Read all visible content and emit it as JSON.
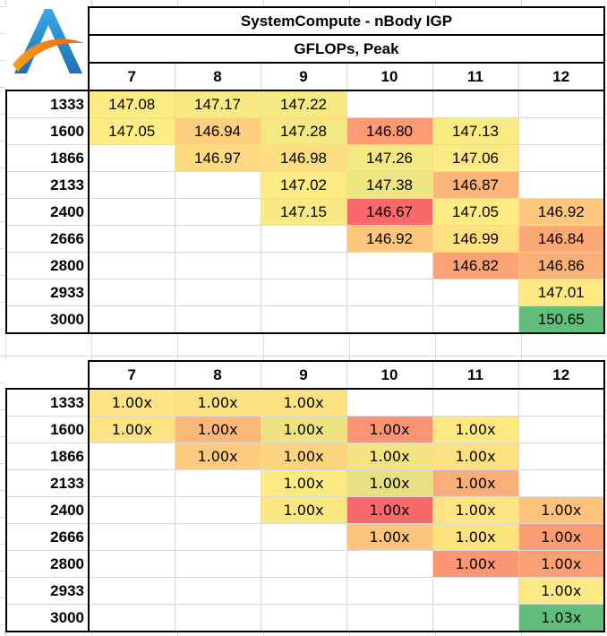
{
  "colors": {
    "min": "#f8696b",
    "mid": "#ffeb84",
    "max": "#63be7b"
  },
  "logo": {
    "icon": "letter-a-logo-icon"
  },
  "table1": {
    "title": "SystemCompute - nBody IGP",
    "subtitle": "GFLOPs, Peak",
    "columns": [
      "7",
      "8",
      "9",
      "10",
      "11",
      "12"
    ],
    "rows": [
      {
        "label": "1333",
        "cells": [
          "147.08",
          "147.17",
          "147.22",
          "",
          "",
          ""
        ]
      },
      {
        "label": "1600",
        "cells": [
          "147.05",
          "146.94",
          "147.28",
          "146.80",
          "147.13",
          ""
        ]
      },
      {
        "label": "1866",
        "cells": [
          "",
          "146.97",
          "146.98",
          "147.26",
          "147.06",
          ""
        ]
      },
      {
        "label": "2133",
        "cells": [
          "",
          "",
          "147.02",
          "147.38",
          "146.87",
          ""
        ]
      },
      {
        "label": "2400",
        "cells": [
          "",
          "",
          "147.15",
          "146.67",
          "147.05",
          "146.92"
        ]
      },
      {
        "label": "2666",
        "cells": [
          "",
          "",
          "",
          "146.92",
          "146.99",
          "146.84"
        ]
      },
      {
        "label": "2800",
        "cells": [
          "",
          "",
          "",
          "",
          "146.82",
          "146.86"
        ]
      },
      {
        "label": "2933",
        "cells": [
          "",
          "",
          "",
          "",
          "",
          "147.01"
        ]
      },
      {
        "label": "3000",
        "cells": [
          "",
          "",
          "",
          "",
          "",
          "150.65"
        ]
      }
    ]
  },
  "table2": {
    "columns": [
      "7",
      "8",
      "9",
      "10",
      "11",
      "12"
    ],
    "rows": [
      {
        "label": "1333",
        "cells": [
          "1.00x",
          "1.00x",
          "1.00x",
          "",
          "",
          ""
        ],
        "heat": [
          "#fde381",
          "#fce281",
          "#fce181",
          "",
          "",
          ""
        ]
      },
      {
        "label": "1600",
        "cells": [
          "1.00x",
          "1.00x",
          "1.00x",
          "1.00x",
          "1.00x",
          ""
        ],
        "heat": [
          "#fde381",
          "#fbb87a",
          "#eee383",
          "#fa9473",
          "#fde981",
          ""
        ]
      },
      {
        "label": "1866",
        "cells": [
          "",
          "1.00x",
          "1.00x",
          "1.00x",
          "1.00x",
          ""
        ],
        "heat": [
          "",
          "#fccb7d",
          "#fcd47f",
          "#f2e482",
          "#fde07f",
          ""
        ]
      },
      {
        "label": "2133",
        "cells": [
          "",
          "",
          "1.00x",
          "1.00x",
          "1.00x",
          ""
        ],
        "heat": [
          "",
          "",
          "#fdea83",
          "#e6e082",
          "#fbae79",
          ""
        ]
      },
      {
        "label": "2400",
        "cells": [
          "",
          "",
          "1.00x",
          "1.00x",
          "1.00x",
          "1.00x"
        ],
        "heat": [
          "",
          "",
          "#fbe782",
          "#f8696b",
          "#fde381",
          "#fcc27c"
        ]
      },
      {
        "label": "2666",
        "cells": [
          "",
          "",
          "",
          "1.00x",
          "1.00x",
          "1.00x"
        ],
        "heat": [
          "",
          "",
          "",
          "#fcc47c",
          "#fde27f",
          "#fa9c74"
        ]
      },
      {
        "label": "2800",
        "cells": [
          "",
          "",
          "",
          "",
          "1.00x",
          "1.00x"
        ],
        "heat": [
          "",
          "",
          "",
          "",
          "#fa9672",
          "#fb9f75"
        ]
      },
      {
        "label": "2933",
        "cells": [
          "",
          "",
          "",
          "",
          "",
          "1.00x"
        ],
        "heat": [
          "",
          "",
          "",
          "",
          "",
          "#fde983"
        ]
      },
      {
        "label": "3000",
        "cells": [
          "",
          "",
          "",
          "",
          "",
          "1.03x"
        ],
        "heat": [
          "",
          "",
          "",
          "",
          "",
          "#63be7b"
        ]
      }
    ]
  }
}
